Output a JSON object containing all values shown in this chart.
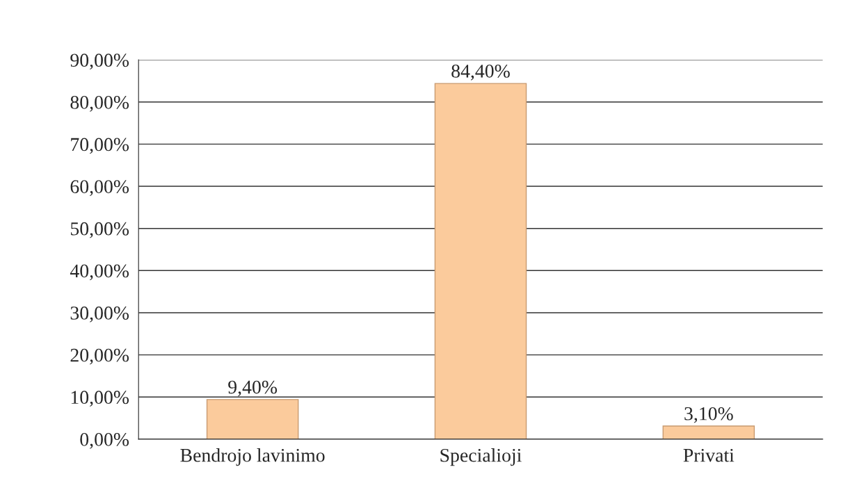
{
  "chart_data": {
    "type": "bar",
    "categories": [
      "Bendrojo lavinimo",
      "Specialioji",
      "Privati"
    ],
    "values": [
      9.4,
      84.4,
      3.1
    ],
    "value_labels": [
      "9,40%",
      "84,40%",
      "3,10%"
    ],
    "color": "#fbcb9c",
    "ylim": [
      0,
      90
    ],
    "yticks": [
      {
        "value": 0,
        "label": "0,00%"
      },
      {
        "value": 10,
        "label": "10,00%"
      },
      {
        "value": 20,
        "label": "20,00%"
      },
      {
        "value": 30,
        "label": "30,00%"
      },
      {
        "value": 40,
        "label": "40,00%"
      },
      {
        "value": 50,
        "label": "50,00%"
      },
      {
        "value": 60,
        "label": "60,00%"
      },
      {
        "value": 70,
        "label": "70,00%"
      },
      {
        "value": 80,
        "label": "80,00%"
      },
      {
        "value": 90,
        "label": "90,00%"
      }
    ],
    "grid": "y"
  }
}
